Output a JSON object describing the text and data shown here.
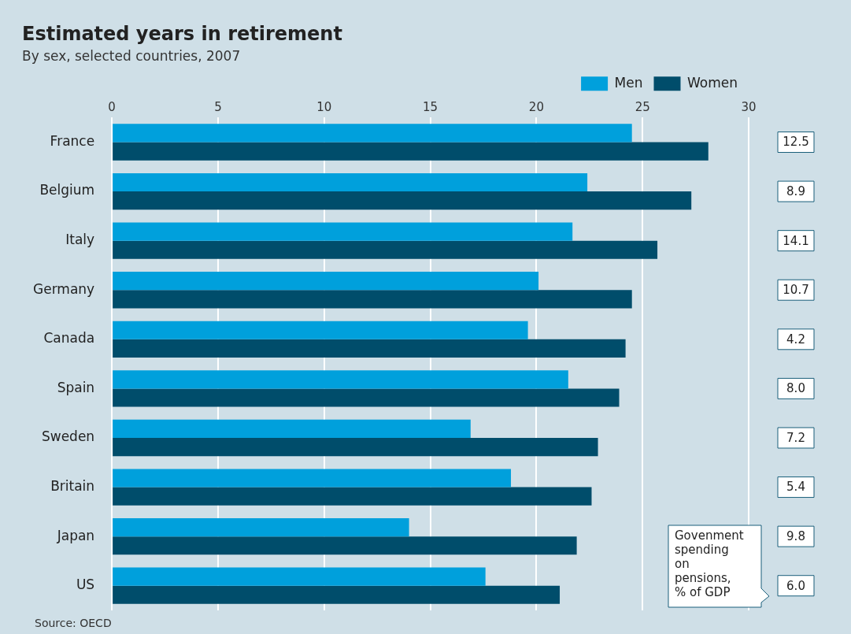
{
  "chart_data": {
    "type": "bar",
    "orientation": "horizontal",
    "title": "Estimated years in retirement",
    "subtitle": "By sex, selected countries, 2007",
    "categories": [
      "France",
      "Belgium",
      "Italy",
      "Germany",
      "Canada",
      "Spain",
      "Sweden",
      "Britain",
      "Japan",
      "US"
    ],
    "series": [
      {
        "name": "Men",
        "color": "#00a0dc",
        "values": [
          24.5,
          22.4,
          21.7,
          20.1,
          19.6,
          21.5,
          16.9,
          18.8,
          14.0,
          17.6
        ]
      },
      {
        "name": "Women",
        "color": "#004d6b",
        "values": [
          28.1,
          27.3,
          25.7,
          24.5,
          24.2,
          23.9,
          22.9,
          22.6,
          21.9,
          21.1
        ]
      }
    ],
    "xlim": [
      0,
      30
    ],
    "xticks": [
      0,
      5,
      10,
      15,
      20,
      25,
      30
    ],
    "grid": "x",
    "legend": "top right",
    "annotations": [
      "Govenment spending on pensions, % of GDP",
      "12.5",
      "8.9",
      "14.1",
      "10.7",
      "4.2",
      "8.0",
      "7.2",
      "5.4",
      "9.8",
      "6.0",
      "Source: OECD"
    ]
  }
}
